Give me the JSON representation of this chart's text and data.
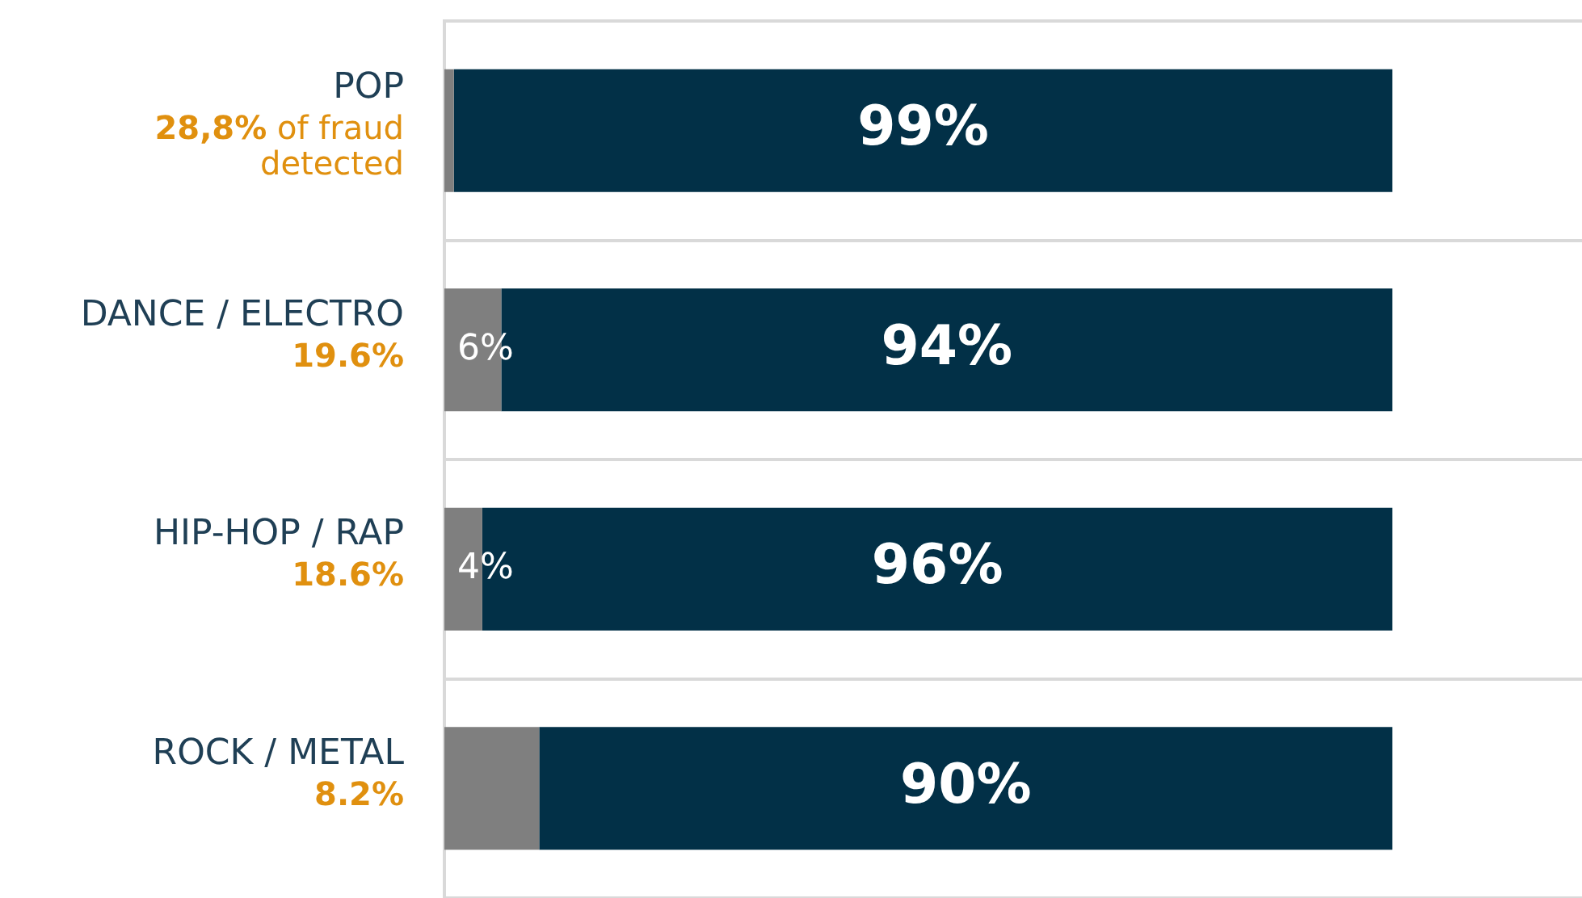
{
  "chart_data": {
    "type": "bar",
    "orientation": "horizontal",
    "stacked": true,
    "categories": [
      "POP",
      "DANCE / ELECTRO",
      "HIP-HOP / RAP",
      "ROCK / METAL"
    ],
    "series": [
      {
        "color": "#7f7f7f",
        "values": [
          1,
          6,
          4,
          10
        ],
        "value_labels": [
          null,
          "6%",
          "4%",
          null
        ]
      },
      {
        "color": "#023047",
        "values": [
          99,
          94,
          96,
          90
        ],
        "value_labels": [
          "99%",
          "94%",
          "96%",
          "90%"
        ]
      }
    ],
    "annotations": [
      "28,8% of fraud detected",
      "19.6%",
      "18.6%",
      "8.2%"
    ],
    "tick_labels": "y",
    "grid": "y",
    "legend": false
  }
}
